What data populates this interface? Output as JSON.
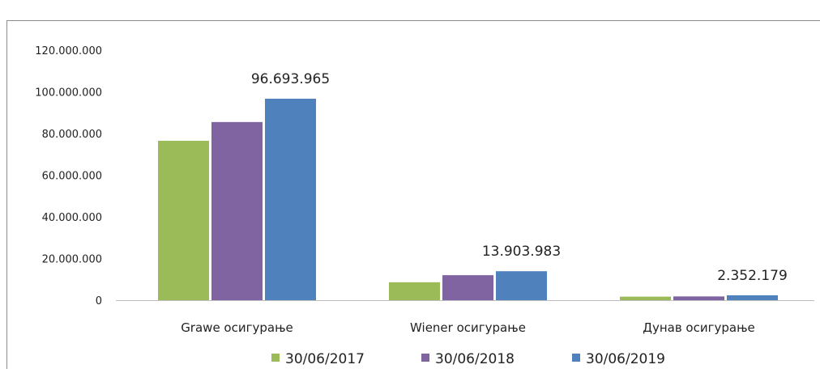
{
  "chart_data": {
    "type": "bar",
    "title": "",
    "xlabel": "",
    "ylabel": "",
    "categories": [
      "Grawe осигурање",
      "Wiener осигурање",
      "Дунав осигурање"
    ],
    "series": [
      {
        "name": "30/06/2017",
        "color": "#9bbb59",
        "values": [
          76500000,
          8600000,
          1700000
        ]
      },
      {
        "name": "30/06/2018",
        "color": "#8064a2",
        "values": [
          85500000,
          12000000,
          1800000
        ]
      },
      {
        "name": "30/06/2019",
        "color": "#4f81bd",
        "values": [
          96693965,
          13903983,
          2352179
        ]
      }
    ],
    "data_labels": [
      {
        "category_index": 0,
        "series_index": 2,
        "text": "96.693.965"
      },
      {
        "category_index": 1,
        "series_index": 2,
        "text": "13.903.983"
      },
      {
        "category_index": 2,
        "series_index": 2,
        "text": "2.352.179"
      }
    ],
    "y_ticks": [
      {
        "value": 0,
        "label": "0"
      },
      {
        "value": 20000000,
        "label": "20.000.000"
      },
      {
        "value": 40000000,
        "label": "40.000.000"
      },
      {
        "value": 60000000,
        "label": "60.000.000"
      },
      {
        "value": 80000000,
        "label": "80.000.000"
      },
      {
        "value": 100000000,
        "label": "100.000.000"
      },
      {
        "value": 120000000,
        "label": "120.000.000"
      }
    ],
    "ylim": [
      0,
      120000000
    ],
    "grid": false,
    "legend_position": "bottom"
  }
}
